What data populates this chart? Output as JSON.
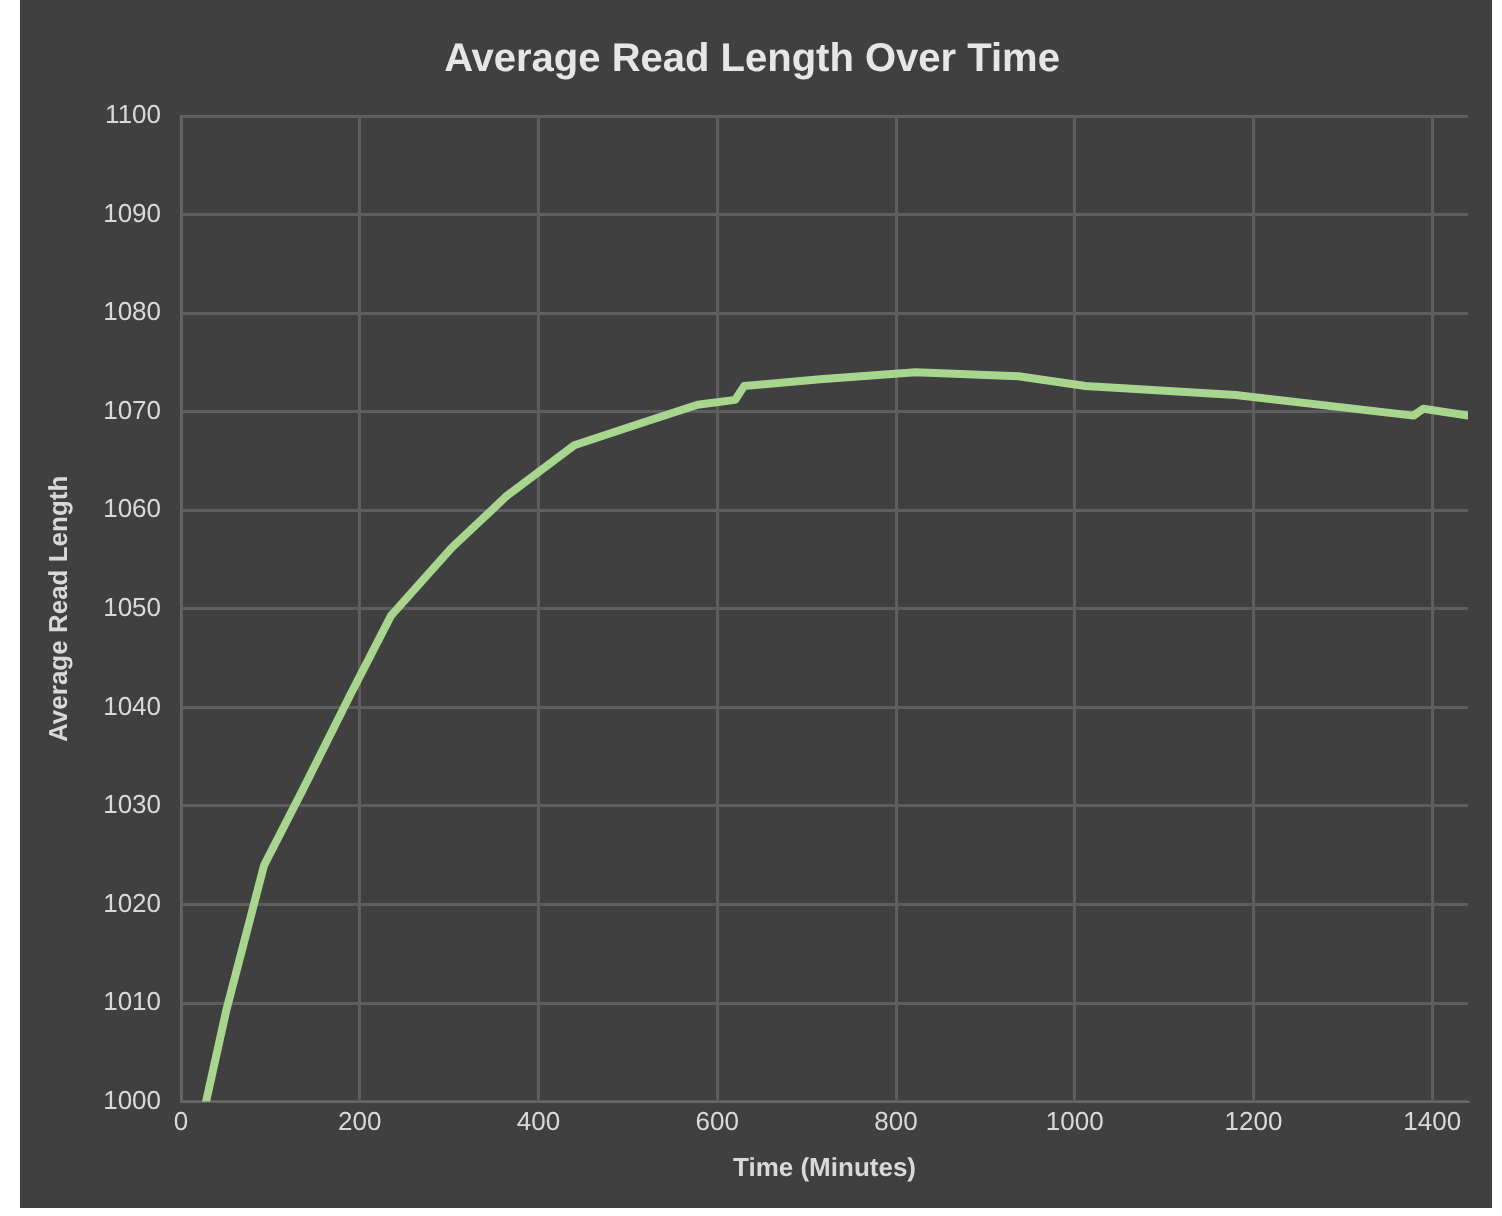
{
  "chart_data": {
    "type": "line",
    "title": "Average Read Length Over Time",
    "xlabel": "Time (Minutes)",
    "ylabel": "Average Read Length",
    "x": [
      28,
      51,
      93,
      136,
      189,
      235,
      303,
      365,
      440,
      517,
      578,
      620,
      630,
      715,
      822,
      937,
      1012,
      1180,
      1379,
      1390,
      1440
    ],
    "series": [
      {
        "color": "#a8d68f",
        "values": [
          1000,
          1009.4,
          1024,
          1031.6,
          1041.2,
          1049.3,
          1056.2,
          1061.5,
          1066.6,
          1068.9,
          1070.7,
          1071.2,
          1072.6,
          1073.3,
          1074,
          1073.6,
          1072.6,
          1071.7,
          1069.6,
          1070.3,
          1069.6
        ]
      }
    ],
    "xlim": [
      0,
      1440
    ],
    "xticks": [
      0,
      200,
      400,
      600,
      800,
      1000,
      1200,
      1400
    ],
    "ylim": [
      1000,
      1100
    ],
    "yticks": [
      1000,
      1010,
      1020,
      1030,
      1040,
      1050,
      1060,
      1070,
      1080,
      1090,
      1100
    ],
    "grid": true,
    "legend": false,
    "marker": "none",
    "line_style": "solid"
  }
}
